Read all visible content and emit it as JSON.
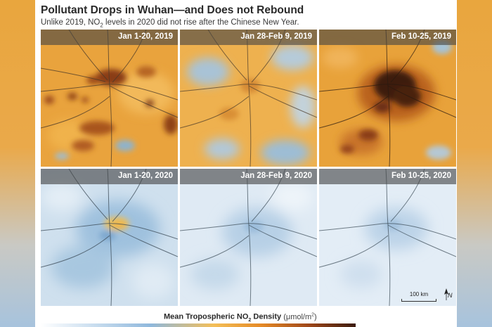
{
  "header": {
    "title": "Pollutant Drops in Wuhan—and Does not Rebound",
    "subtitle_before": "Unlike 2019, NO",
    "subtitle_sub": "2",
    "subtitle_after": " levels in 2020 did not rise after the Chinese New Year."
  },
  "panels": {
    "p2019_a": {
      "label": "Jan 1-20, 2019",
      "year": "2019"
    },
    "p2019_b": {
      "label": "Jan 28-Feb 9, 2019",
      "year": "2019"
    },
    "p2019_c": {
      "label": "Feb 10-25, 2019",
      "year": "2019"
    },
    "p2020_a": {
      "label": "Jan 1-20, 2020",
      "year": "2020"
    },
    "p2020_b": {
      "label": "Jan 28-Feb 9, 2020",
      "year": "2020"
    },
    "p2020_c": {
      "label": "Feb 10-25, 2020",
      "year": "2020"
    }
  },
  "map_scale": {
    "label": "100 km"
  },
  "north_arrow": {
    "label": "N"
  },
  "legend": {
    "title_before": "Mean Tropospheric NO",
    "title_sub": "2",
    "title_after": " Density",
    "unit_before": "(μmol/m",
    "unit_sup": "2",
    "unit_after": ")",
    "colors": [
      "#ffffff",
      "#cfe1f1",
      "#8fb8dc",
      "#f4bf58",
      "#e58a26",
      "#a0481a",
      "#3b1a0d"
    ]
  },
  "colors": {
    "high_no2": "#e8a23a",
    "low_no2": "#cfe1f1",
    "road_line": "#3b4a55"
  }
}
